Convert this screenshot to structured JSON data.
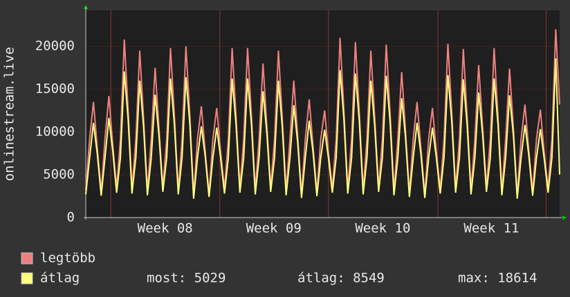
{
  "chart_data": {
    "type": "line",
    "y_label": "onlinestream.live",
    "xlim": [
      0,
      123
    ],
    "xticks": [
      {
        "value": 20.6,
        "label": "Week 08"
      },
      {
        "value": 48.8,
        "label": "Week 09"
      },
      {
        "value": 77.1,
        "label": "Week 10"
      },
      {
        "value": 105.3,
        "label": "Week 11"
      }
    ],
    "xgrid": [
      6.5,
      34.8,
      63,
      91.4,
      119.5
    ],
    "ylim": [
      0,
      24200
    ],
    "yticks": [
      0,
      5000,
      10000,
      15000,
      20000
    ],
    "grid": true,
    "series": [
      {
        "name": "legtöbb",
        "color": "#f08080",
        "values": [
          3200,
          9200,
          13500,
          8100,
          3000,
          9200,
          14200,
          8500,
          3400,
          9200,
          20800,
          12500,
          3300,
          9200,
          19500,
          11700,
          3100,
          9200,
          17500,
          10500,
          3500,
          9200,
          19800,
          11900,
          3200,
          9200,
          20000,
          12000,
          2600,
          9200,
          13000,
          7800,
          2800,
          9200,
          12800,
          7700,
          3300,
          9200,
          19800,
          11900,
          3400,
          9200,
          19800,
          11900,
          3200,
          9200,
          18000,
          10800,
          3500,
          9200,
          19500,
          11700,
          3100,
          9200,
          16000,
          9600,
          2700,
          9200,
          13800,
          8300,
          2900,
          9200,
          12500,
          7500,
          3400,
          9200,
          21000,
          12600,
          3300,
          9200,
          20500,
          12300,
          3200,
          9200,
          19500,
          11700,
          3500,
          9200,
          20200,
          12100,
          3100,
          9200,
          17000,
          10200,
          2800,
          9200,
          13500,
          8100,
          2700,
          9200,
          12800,
          7700,
          3300,
          9200,
          20300,
          12200,
          3400,
          9200,
          19700,
          11800,
          3200,
          9200,
          17800,
          10700,
          3500,
          9200,
          19800,
          11900,
          3100,
          9200,
          17400,
          10400,
          2600,
          9200,
          13200,
          7900,
          3000,
          9200,
          12600,
          7600,
          3400,
          9200,
          22000,
          13200
        ]
      },
      {
        "name": "átlag",
        "color": "#ffff80",
        "values": [
          2700,
          7000,
          11070,
          7400,
          2550,
          7000,
          11640,
          7800,
          2900,
          7000,
          17060,
          11400,
          2800,
          7000,
          15990,
          10700,
          2600,
          7000,
          14350,
          9600,
          3000,
          7000,
          16240,
          10900,
          2700,
          7000,
          16400,
          11000,
          2200,
          7000,
          10660,
          7200,
          2400,
          7000,
          10500,
          7000,
          2800,
          7000,
          16240,
          10900,
          2900,
          7000,
          16240,
          10900,
          2700,
          7000,
          14760,
          9900,
          3000,
          7000,
          15990,
          10700,
          2600,
          7000,
          13120,
          8800,
          2300,
          7000,
          11320,
          7600,
          2500,
          7000,
          10250,
          6900,
          2900,
          7000,
          17220,
          11600,
          2800,
          7000,
          16810,
          11300,
          2700,
          7000,
          15990,
          10700,
          3000,
          7000,
          16560,
          11100,
          2600,
          7000,
          13940,
          9400,
          2400,
          7000,
          11070,
          7400,
          2300,
          7000,
          10500,
          7000,
          2800,
          7000,
          16650,
          11200,
          2900,
          7000,
          16150,
          10800,
          2700,
          7000,
          14600,
          9800,
          3000,
          7000,
          16240,
          10900,
          2600,
          7000,
          14270,
          9600,
          2200,
          7000,
          10820,
          7300,
          2550,
          7000,
          10330,
          6900,
          2900,
          7000,
          18600,
          5029
        ]
      }
    ],
    "stats": [
      "most: 5029",
      "átlag: 8549",
      "max: 18614"
    ]
  }
}
